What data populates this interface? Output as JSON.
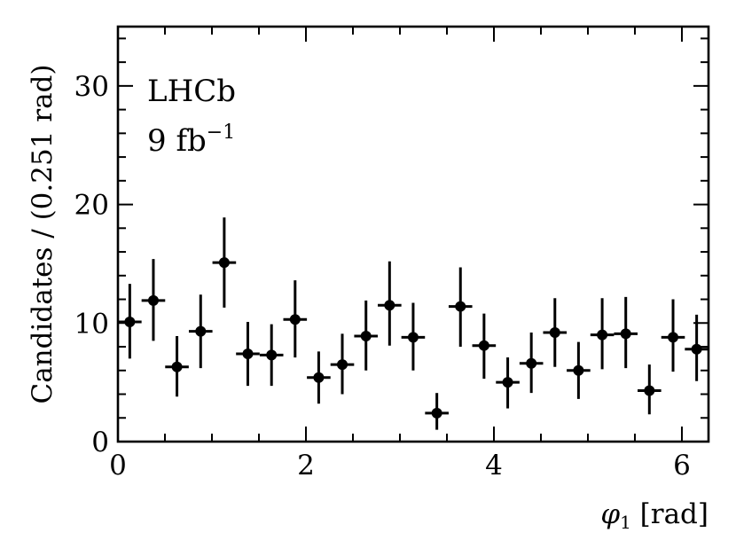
{
  "chart_data": {
    "type": "scatter",
    "title": "",
    "xlabel_symbol": "φ",
    "xlabel_subscript": "1",
    "xlabel_unit": " [rad]",
    "ylabel": "Candidates / (0.251 rad)",
    "xlim": [
      0,
      6.2832
    ],
    "ylim": [
      0,
      35
    ],
    "x_ticks": [
      0,
      2,
      4,
      6
    ],
    "y_ticks": [
      0,
      10,
      20,
      30
    ],
    "x_tick_labels": [
      "0",
      "2",
      "4",
      "6"
    ],
    "y_tick_labels": [
      "0",
      "10",
      "20",
      "30"
    ],
    "bin_width": 0.251,
    "grid": false,
    "legend": "none",
    "marker_color": "#000000",
    "annotations": {
      "experiment": "LHCb",
      "luminosity_value": "9 fb",
      "luminosity_exponent": "−1"
    },
    "series": [
      {
        "x": [
          0.126,
          0.377,
          0.628,
          0.88,
          1.131,
          1.382,
          1.634,
          1.885,
          2.136,
          2.387,
          2.639,
          2.89,
          3.141,
          3.393,
          3.644,
          3.895,
          4.147,
          4.398,
          4.649,
          4.9,
          5.152,
          5.403,
          5.654,
          5.906,
          6.157
        ],
        "y": [
          10.1,
          11.9,
          6.3,
          9.3,
          15.1,
          7.4,
          7.3,
          10.3,
          5.4,
          6.5,
          8.9,
          11.5,
          8.8,
          2.4,
          11.4,
          8.1,
          5.0,
          6.6,
          9.2,
          6.0,
          9.0,
          9.1,
          4.3,
          8.8,
          7.8
        ],
        "y_err_low": [
          3.1,
          3.4,
          2.5,
          3.1,
          3.8,
          2.7,
          2.6,
          3.2,
          2.2,
          2.5,
          2.9,
          3.4,
          2.8,
          1.4,
          3.4,
          2.8,
          2.2,
          2.5,
          2.9,
          2.4,
          2.9,
          2.9,
          2.0,
          2.9,
          2.7
        ],
        "y_err_high": [
          3.2,
          3.5,
          2.6,
          3.1,
          3.8,
          2.7,
          2.6,
          3.3,
          2.2,
          2.6,
          3.0,
          3.7,
          2.9,
          1.7,
          3.3,
          2.7,
          2.1,
          2.6,
          2.9,
          2.4,
          3.1,
          3.1,
          2.2,
          3.2,
          2.9
        ]
      }
    ]
  }
}
